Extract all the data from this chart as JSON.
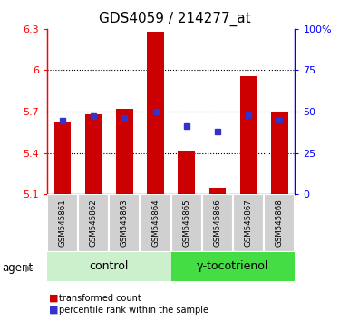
{
  "title": "GDS4059 / 214277_at",
  "categories": [
    "GSM545861",
    "GSM545862",
    "GSM545863",
    "GSM545864",
    "GSM545865",
    "GSM545866",
    "GSM545867",
    "GSM545868"
  ],
  "bar_bottoms": [
    5.1,
    5.1,
    5.1,
    5.1,
    5.1,
    5.1,
    5.1,
    5.1
  ],
  "bar_tops": [
    5.62,
    5.68,
    5.72,
    6.28,
    5.41,
    5.15,
    5.96,
    5.7
  ],
  "blue_markers": [
    5.635,
    5.665,
    5.652,
    5.7,
    5.595,
    5.558,
    5.672,
    5.64
  ],
  "bar_color": "#cc0000",
  "marker_color": "#3333cc",
  "ylim_left": [
    5.1,
    6.3
  ],
  "ylim_right": [
    0,
    100
  ],
  "yticks_left": [
    5.1,
    5.4,
    5.7,
    6.0,
    6.3
  ],
  "ytick_labels_left": [
    "5.1",
    "5.4",
    "5.7",
    "6",
    "6.3"
  ],
  "yticks_right": [
    0,
    25,
    50,
    75,
    100
  ],
  "ytick_labels_right": [
    "0",
    "25",
    "50",
    "75",
    "100%"
  ],
  "hlines": [
    5.4,
    5.7,
    6.0
  ],
  "control_label": "control",
  "treatment_label": "γ-tocotrienol",
  "agent_label": "agent",
  "legend_bar_label": "transformed count",
  "legend_marker_label": "percentile rank within the sample",
  "control_bg": "#ccf0cc",
  "treatment_bg": "#44dd44",
  "sample_box_bg": "#d0d0d0",
  "title_fontsize": 11,
  "tick_fontsize": 8,
  "label_fontsize": 8,
  "group_fontsize": 9,
  "bar_width": 0.55
}
